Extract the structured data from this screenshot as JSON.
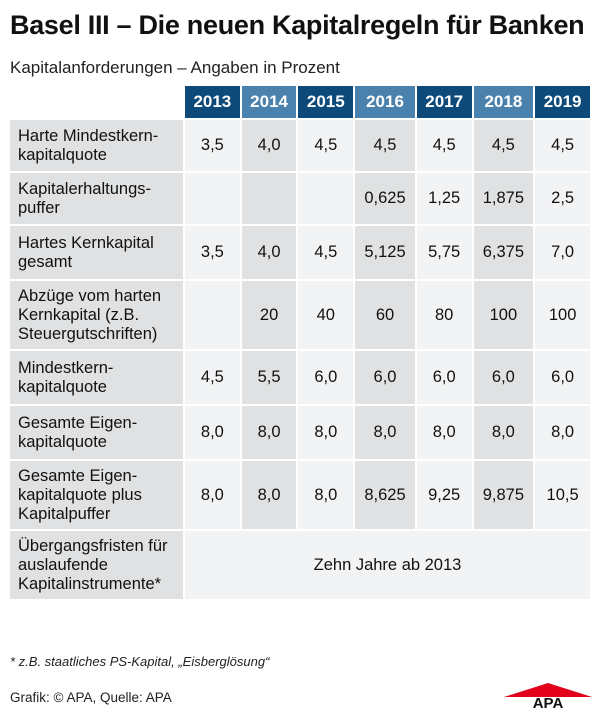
{
  "title": "Basel III – Die neuen Kapitalregeln für Banken",
  "subtitle": "Kapitalanforderungen – Angaben in Prozent",
  "footnote": "* z.B. staatliches PS-Kapital, „Eisberglösung“",
  "source": "Grafik: © APA, Quelle: APA",
  "logo_text": "APA",
  "colors": {
    "header_dark": "#0d4a7a",
    "header_light": "#4b82ad",
    "cell_light": "#f2f3f4",
    "cell_dark": "#dfe1e2",
    "logo_red": "#e3001b"
  },
  "chart_data": {
    "type": "table",
    "title": "Basel III – Die neuen Kapitalregeln für Banken",
    "subtitle": "Kapitalanforderungen – Angaben in Prozent",
    "columns": [
      "2013",
      "2014",
      "2015",
      "2016",
      "2017",
      "2018",
      "2019"
    ],
    "rows": [
      {
        "label": "Harte Mindestkern-kapitalquote",
        "values": [
          "3,5",
          "4,0",
          "4,5",
          "4,5",
          "4,5",
          "4,5",
          "4,5"
        ]
      },
      {
        "label": "Kapitalerhaltungs-puffer",
        "values": [
          "",
          "",
          "",
          "0,625",
          "1,25",
          "1,875",
          "2,5"
        ]
      },
      {
        "label": "Hartes Kernkapital gesamt",
        "values": [
          "3,5",
          "4,0",
          "4,5",
          "5,125",
          "5,75",
          "6,375",
          "7,0"
        ]
      },
      {
        "label": "Abzüge vom harten Kernkapital (z.B. Steuergutschriften)",
        "values": [
          "",
          "20",
          "40",
          "60",
          "80",
          "100",
          "100"
        ]
      },
      {
        "label": "Mindestkern-kapitalquote",
        "values": [
          "4,5",
          "5,5",
          "6,0",
          "6,0",
          "6,0",
          "6,0",
          "6,0"
        ]
      },
      {
        "label": "Gesamte Eigen-kapitalquote",
        "values": [
          "8,0",
          "8,0",
          "8,0",
          "8,0",
          "8,0",
          "8,0",
          "8,0"
        ]
      },
      {
        "label": "Gesamte Eigen-kapitalquote plus Kapitalpuffer",
        "values": [
          "8,0",
          "8,0",
          "8,0",
          "8,625",
          "9,25",
          "9,875",
          "10,5"
        ]
      }
    ],
    "last_row": {
      "label": "Übergangsfristen für auslaufende Kapitalinstrumente*",
      "merged_value": "Zehn Jahre ab 2013"
    }
  }
}
